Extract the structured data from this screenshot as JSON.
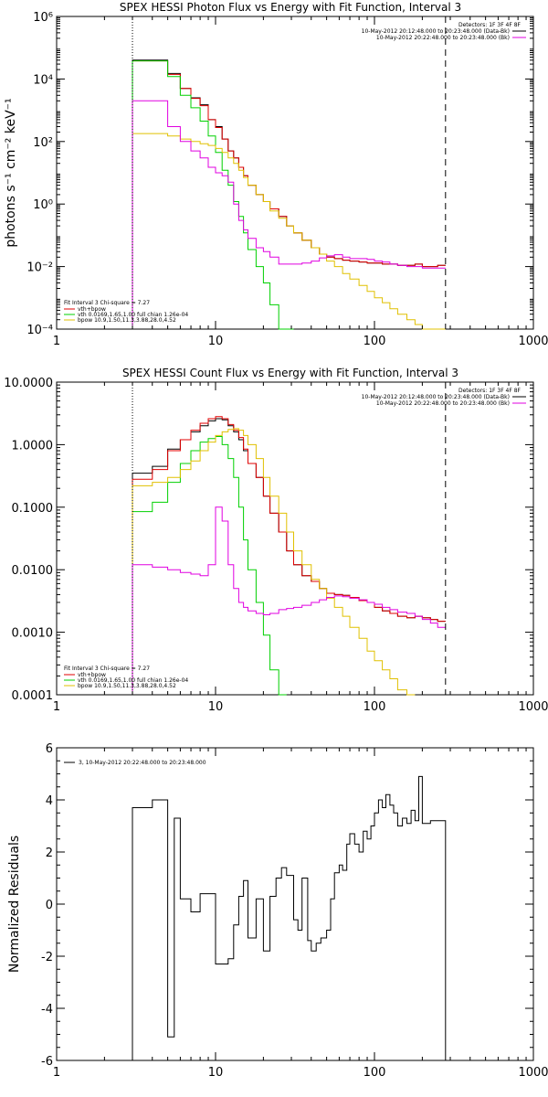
{
  "colors": {
    "total": "#000000",
    "sum": "#e00000",
    "vth": "#00d000",
    "bpow": "#e0c000",
    "bk": "#e000e0"
  },
  "detectors": "Detectors: 1F 3F 4F 8F",
  "chart_data": [
    {
      "type": "line",
      "title": "SPEX HESSI Photon Flux vs Energy with Fit Function, Interval 3",
      "ylabel": "photons s⁻¹ cm⁻² keV⁻¹",
      "xlabel": "",
      "x_scale": "log",
      "y_scale": "log",
      "xlim": [
        1,
        1000
      ],
      "ylim": [
        0.0001,
        1000000
      ],
      "xticks": [
        {
          "v": 1,
          "label": "1"
        },
        {
          "v": 10,
          "label": "10"
        },
        {
          "v": 100,
          "label": "100"
        },
        {
          "v": 1000,
          "label": "1000"
        }
      ],
      "yticks": [
        {
          "v": 0.0001,
          "label": "10⁻⁴"
        },
        {
          "v": 0.01,
          "label": "10⁻²"
        },
        {
          "v": 1,
          "label": "10⁰"
        },
        {
          "v": 100,
          "label": "10²"
        },
        {
          "v": 10000,
          "label": "10⁴"
        },
        {
          "v": 1000000,
          "label": "10⁶"
        }
      ],
      "vlines": [
        {
          "x": 3,
          "style": "dotted"
        },
        {
          "x": 280,
          "style": "dashed"
        }
      ],
      "legend_tr": [
        "10-May-2012 20:12:48.000 to 20:23:48.000 (Data-Bk)",
        "10-May-2012 20:22:48.000 to 20:23:48.000 (Bk)"
      ],
      "legend_bl": [
        "Fit Interval 3   Chi-square = 7.27",
        "vth+bpow",
        "vth 0.0169,1.65,1.00  full chian 1.26e-04",
        "bpow 10.9,1.50,11.3,3.88,28.0,4.52"
      ],
      "edges": [
        3,
        4,
        5,
        6,
        7,
        8,
        9,
        10,
        11,
        12,
        13,
        14,
        15,
        16,
        18,
        20,
        22,
        25,
        28,
        31,
        35,
        40,
        45,
        50,
        56,
        63,
        70,
        80,
        90,
        100,
        112,
        125,
        140,
        160,
        180,
        200,
        225,
        250,
        280
      ],
      "series": [
        {
          "name": "",
          "color": "#000000",
          "values": [
            40000,
            40000,
            15000,
            5000,
            2500,
            1500,
            500,
            300,
            120,
            50,
            30,
            15,
            8,
            4,
            2.0,
            1.2,
            0.7,
            0.4,
            0.2,
            0.12,
            0.07,
            0.04,
            0.025,
            0.02,
            0.018,
            0.016,
            0.015,
            0.014,
            0.013,
            0.013,
            0.012,
            0.012,
            0.011,
            0.011,
            0.012,
            0.01,
            0.01,
            0.011
          ]
        },
        {
          "name": "vth+bpow",
          "color": "#e00000",
          "values": [
            38000,
            38000,
            14000,
            5000,
            2400,
            1400,
            500,
            280,
            120,
            50,
            30,
            15,
            8,
            4,
            2.0,
            1.2,
            0.7,
            0.4,
            0.2,
            0.12,
            0.07,
            0.04,
            0.025,
            0.02,
            0.018,
            0.016,
            0.015,
            0.014,
            0.013,
            0.013,
            0.012,
            0.012,
            0.011,
            0.011,
            0.012,
            0.01,
            0.01,
            0.011
          ]
        },
        {
          "name": "vth",
          "color": "#00d000",
          "values": [
            38000,
            38000,
            12000,
            3000,
            1200,
            450,
            150,
            45,
            12,
            4,
            1.2,
            0.4,
            0.12,
            0.035,
            0.01,
            0.003,
            0.0006,
            0.0001,
            1e-05
          ]
        },
        {
          "name": "bpow",
          "color": "#e0c000",
          "values": [
            180,
            180,
            150,
            120,
            100,
            85,
            75,
            60,
            45,
            30,
            20,
            12,
            7,
            4,
            2.0,
            1.2,
            0.6,
            0.35,
            0.2,
            0.12,
            0.07,
            0.04,
            0.025,
            0.015,
            0.01,
            0.006,
            0.004,
            0.0025,
            0.0016,
            0.001,
            0.0007,
            0.00045,
            0.0003,
            0.0002,
            0.00014,
            0.0001,
            7e-05,
            5e-05
          ]
        },
        {
          "name": "Bk",
          "color": "#e000e0",
          "values": [
            2000,
            2000,
            300,
            100,
            50,
            30,
            15,
            10,
            8,
            5,
            1.0,
            0.3,
            0.15,
            0.08,
            0.04,
            0.03,
            0.02,
            0.012,
            0.012,
            0.012,
            0.013,
            0.015,
            0.019,
            0.022,
            0.024,
            0.02,
            0.018,
            0.018,
            0.017,
            0.015,
            0.014,
            0.012,
            0.011,
            0.01,
            0.01,
            0.009,
            0.009,
            0.009
          ]
        }
      ]
    },
    {
      "type": "line",
      "title": "SPEX HESSI Count Flux vs Energy with Fit Function, Interval 3",
      "ylabel": "",
      "xlabel": "",
      "x_scale": "log",
      "y_scale": "log",
      "xlim": [
        1,
        1000
      ],
      "ylim": [
        0.0001,
        10
      ],
      "xticks": [
        {
          "v": 1,
          "label": "1"
        },
        {
          "v": 10,
          "label": "10"
        },
        {
          "v": 100,
          "label": "100"
        },
        {
          "v": 1000,
          "label": "1000"
        }
      ],
      "yticks": [
        {
          "v": 0.0001,
          "label": "0.0001"
        },
        {
          "v": 0.001,
          "label": "0.0010"
        },
        {
          "v": 0.01,
          "label": "0.0100"
        },
        {
          "v": 0.1,
          "label": "0.1000"
        },
        {
          "v": 1,
          "label": "1.0000"
        },
        {
          "v": 10,
          "label": "10.0000"
        }
      ],
      "vlines": [
        {
          "x": 3,
          "style": "dotted"
        },
        {
          "x": 280,
          "style": "dashed"
        }
      ],
      "legend_tr": [
        "10-May-2012 20:12:48.000 to 20:23:48.000 (Data-Bk)",
        "10-May-2012 20:22:48.000 to 20:23:48.000 (Bk)"
      ],
      "legend_bl": [
        "Fit Interval 3   Chi-square = 7.27",
        "vth+bpow",
        "vth 0.0169,1.65,1.00  full chian 1.26e-04",
        "bpow 10.9,1.50,11.3,3.88,28.0,4.52"
      ],
      "edges": [
        3,
        4,
        5,
        6,
        7,
        8,
        9,
        10,
        11,
        12,
        13,
        14,
        15,
        16,
        18,
        20,
        22,
        25,
        28,
        31,
        35,
        40,
        45,
        50,
        56,
        63,
        70,
        80,
        90,
        100,
        112,
        125,
        140,
        160,
        180,
        200,
        225,
        250,
        280
      ],
      "series": [
        {
          "name": "",
          "color": "#000000",
          "values": [
            0.35,
            0.45,
            0.85,
            1.2,
            1.6,
            2.0,
            2.4,
            2.6,
            2.5,
            2.0,
            1.6,
            1.2,
            0.8,
            0.5,
            0.3,
            0.15,
            0.08,
            0.04,
            0.02,
            0.012,
            0.008,
            0.0065,
            0.005,
            0.0042,
            0.004,
            0.0039,
            0.0036,
            0.0032,
            0.003,
            0.0025,
            0.0022,
            0.002,
            0.0018,
            0.0017,
            0.0018,
            0.0017,
            0.0016,
            0.0015
          ]
        },
        {
          "name": "vth+bpow",
          "color": "#e00000",
          "values": [
            0.28,
            0.4,
            0.8,
            1.2,
            1.7,
            2.2,
            2.6,
            2.8,
            2.6,
            2.1,
            1.7,
            1.3,
            0.85,
            0.5,
            0.3,
            0.15,
            0.08,
            0.04,
            0.02,
            0.012,
            0.008,
            0.0065,
            0.005,
            0.0042,
            0.004,
            0.0039,
            0.0036,
            0.0032,
            0.003,
            0.0025,
            0.0022,
            0.002,
            0.0018,
            0.0017,
            0.0018,
            0.0017,
            0.0016,
            0.0015
          ]
        },
        {
          "name": "vth",
          "color": "#00d000",
          "values": [
            0.085,
            0.12,
            0.25,
            0.5,
            0.8,
            1.1,
            1.25,
            1.35,
            1.0,
            0.6,
            0.3,
            0.1,
            0.03,
            0.01,
            0.003,
            0.0009,
            0.00025,
            8e-05
          ]
        },
        {
          "name": "bpow",
          "color": "#e0c000",
          "values": [
            0.22,
            0.25,
            0.3,
            0.4,
            0.55,
            0.8,
            1.1,
            1.4,
            1.6,
            1.75,
            1.8,
            1.7,
            1.4,
            1.0,
            0.6,
            0.3,
            0.15,
            0.08,
            0.04,
            0.02,
            0.012,
            0.007,
            0.005,
            0.0035,
            0.0025,
            0.0018,
            0.0012,
            0.0008,
            0.0005,
            0.00035,
            0.00025,
            0.00018,
            0.00012,
            9e-05
          ]
        },
        {
          "name": "Bk",
          "color": "#e000e0",
          "values": [
            0.012,
            0.011,
            0.01,
            0.009,
            0.0085,
            0.008,
            0.012,
            0.1,
            0.06,
            0.012,
            0.005,
            0.003,
            0.0025,
            0.0022,
            0.002,
            0.0019,
            0.002,
            0.0023,
            0.0024,
            0.0025,
            0.0027,
            0.003,
            0.0033,
            0.0036,
            0.0038,
            0.0037,
            0.0035,
            0.0033,
            0.003,
            0.0028,
            0.0025,
            0.0023,
            0.0021,
            0.002,
            0.0018,
            0.0016,
            0.0014,
            0.0012
          ]
        }
      ]
    },
    {
      "type": "line",
      "title": "",
      "ylabel": "Normalized Residuals",
      "xlabel": "",
      "x_scale": "log",
      "y_scale": "linear",
      "xlim": [
        1,
        1000
      ],
      "ylim": [
        -6,
        6
      ],
      "xticks": [
        {
          "v": 1,
          "label": "1"
        },
        {
          "v": 10,
          "label": "10"
        },
        {
          "v": 100,
          "label": "100"
        },
        {
          "v": 1000,
          "label": "1000"
        }
      ],
      "yticks": [
        {
          "v": -6,
          "label": "-6"
        },
        {
          "v": -4,
          "label": "-4"
        },
        {
          "v": -2,
          "label": "-2"
        },
        {
          "v": 0,
          "label": "0"
        },
        {
          "v": 2,
          "label": "2"
        },
        {
          "v": 4,
          "label": "4"
        },
        {
          "v": 6,
          "label": "6"
        }
      ],
      "legend_tl": [
        "3, 10-May-2012 20:22:48.000 to 20:23:48.000"
      ],
      "edges": [
        3,
        4,
        5,
        5.5,
        6,
        7,
        8,
        9,
        10,
        12,
        13,
        14,
        15,
        16,
        18,
        20,
        22,
        24,
        26,
        28,
        31,
        33,
        35,
        38,
        40,
        43,
        46,
        50,
        53,
        56,
        60,
        63,
        67,
        70,
        75,
        80,
        85,
        90,
        95,
        100,
        106,
        112,
        118,
        125,
        132,
        140,
        150,
        160,
        170,
        180,
        190,
        200,
        225,
        250,
        280
      ],
      "series": [
        {
          "name": "",
          "color": "#000000",
          "values": [
            3.7,
            4.0,
            -5.1,
            3.3,
            0.2,
            -0.3,
            0.4,
            0.4,
            -2.3,
            -2.1,
            -0.8,
            0.3,
            0.9,
            -1.3,
            0.2,
            -1.8,
            0.3,
            1.0,
            1.4,
            1.1,
            -0.6,
            -1.0,
            1.0,
            -1.4,
            -1.8,
            -1.5,
            -1.3,
            -1.0,
            0.2,
            1.2,
            1.5,
            1.3,
            2.3,
            2.7,
            2.3,
            2.0,
            2.8,
            2.5,
            3.0,
            3.5,
            4.0,
            3.7,
            4.2,
            3.8,
            3.5,
            3.0,
            3.3,
            3.1,
            3.6,
            3.2,
            4.9,
            3.1,
            3.2,
            3.2
          ]
        }
      ]
    }
  ]
}
